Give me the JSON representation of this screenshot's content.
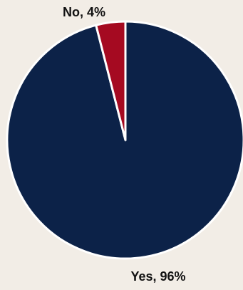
{
  "chart_data": {
    "type": "pie",
    "values": [
      96,
      4
    ],
    "value_labels": [
      "Yes, 96%",
      "No, 4%"
    ],
    "colors": [
      "#0c2248",
      "#a50a21"
    ],
    "start_angle": 0,
    "direction": "clockwise"
  }
}
